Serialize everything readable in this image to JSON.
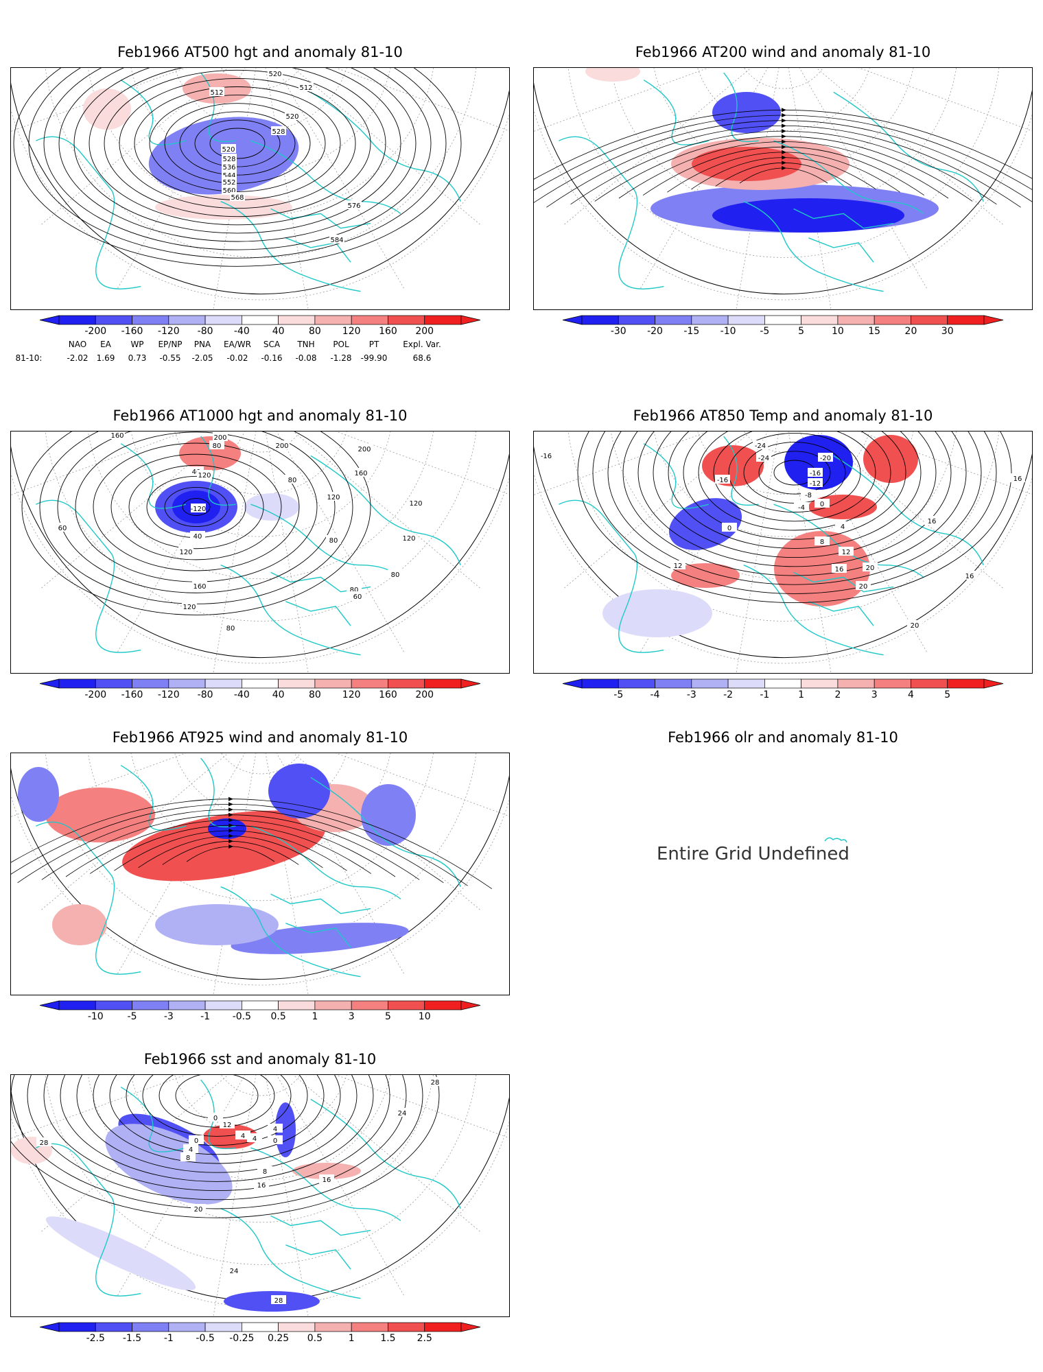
{
  "panels": [
    {
      "id": "p500",
      "title": "Feb1966 AT500 hgt and anomaly 81-10",
      "contour_labels": [
        "512",
        "520",
        "512",
        "520",
        "528",
        "520",
        "528",
        "536",
        "544",
        "552",
        "560",
        "568",
        "576",
        "584"
      ],
      "colorbar": {
        "ticks": [
          "-200",
          "-160",
          "-120",
          "-80",
          "-40",
          "40",
          "80",
          "120",
          "160",
          "200"
        ]
      }
    },
    {
      "id": "p200",
      "title": "Feb1966 AT200 wind and anomaly 81-10",
      "colorbar": {
        "ticks": [
          "-30",
          "-20",
          "-15",
          "-10",
          "-5",
          "5",
          "10",
          "15",
          "20",
          "30"
        ]
      }
    },
    {
      "id": "p1000",
      "title": "Feb1966 AT1000 hgt and anomaly 81-10",
      "contour_labels": [
        "160",
        "200",
        "80",
        "200",
        "40",
        "120",
        "-120",
        "40",
        "120",
        "200",
        "160",
        "80",
        "120",
        "120",
        "160",
        "120",
        "120",
        "80",
        "80",
        "80",
        "60",
        "60",
        "80"
      ],
      "colorbar": {
        "ticks": [
          "-200",
          "-160",
          "-120",
          "-80",
          "-40",
          "40",
          "80",
          "120",
          "160",
          "200"
        ]
      }
    },
    {
      "id": "p850",
      "title": "Feb1966 AT850 Temp and anomaly 81-10",
      "contour_labels": [
        "-16",
        "-24",
        "-16",
        "-24",
        "-20",
        "-16",
        "-12",
        "-8",
        "-4",
        "0",
        "0",
        "4",
        "8",
        "12",
        "16",
        "20",
        "12",
        "20",
        "16",
        "20",
        "16",
        "16"
      ],
      "colorbar": {
        "ticks": [
          "-5",
          "-4",
          "-3",
          "-2",
          "-1",
          "1",
          "2",
          "3",
          "4",
          "5"
        ]
      }
    },
    {
      "id": "p925",
      "title": "Feb1966 AT925 wind and anomaly 81-10",
      "colorbar": {
        "ticks": [
          "-10",
          "-5",
          "-3",
          "-1",
          "-0.5",
          "0.5",
          "1",
          "3",
          "5",
          "10"
        ]
      }
    },
    {
      "id": "polr",
      "title": "Feb1966 olr and anomaly 81-10",
      "message": "Entire Grid Undefined"
    },
    {
      "id": "psst",
      "title": "Feb1966 sst and anomaly 81-10",
      "contour_labels": [
        "28",
        "0",
        "4",
        "8",
        "12",
        "4",
        "0",
        "4",
        "8",
        "0",
        "4",
        "16",
        "20",
        "24",
        "28",
        "24",
        "28",
        "16"
      ],
      "colorbar": {
        "ticks": [
          "-2.5",
          "-1.5",
          "-1",
          "-0.5",
          "-0.25",
          "0.25",
          "0.5",
          "1",
          "1.5",
          "2.5"
        ]
      }
    }
  ],
  "teleconnection": {
    "headers": [
      "NAO",
      "EA",
      "WP",
      "EP/NP",
      "PNA",
      "EA/WR",
      "SCA",
      "TNH",
      "POL",
      "PT",
      "Expl. Var."
    ],
    "row_label": "81-10:",
    "values": [
      "-2.02",
      "1.69",
      "0.73",
      "-0.55",
      "-2.05",
      "-0.02",
      "-0.16",
      "-0.08",
      "-1.28",
      "-99.90",
      "68.6"
    ]
  },
  "colors": {
    "coast": "#1ec8c8",
    "neg": [
      "#2020f0",
      "#5050f5",
      "#8080f5",
      "#b0b0f5",
      "#dcdcfa"
    ],
    "pos": [
      "#fadcdc",
      "#f5b0b0",
      "#f58080",
      "#f05050",
      "#f02020"
    ],
    "contour": "#000000"
  }
}
